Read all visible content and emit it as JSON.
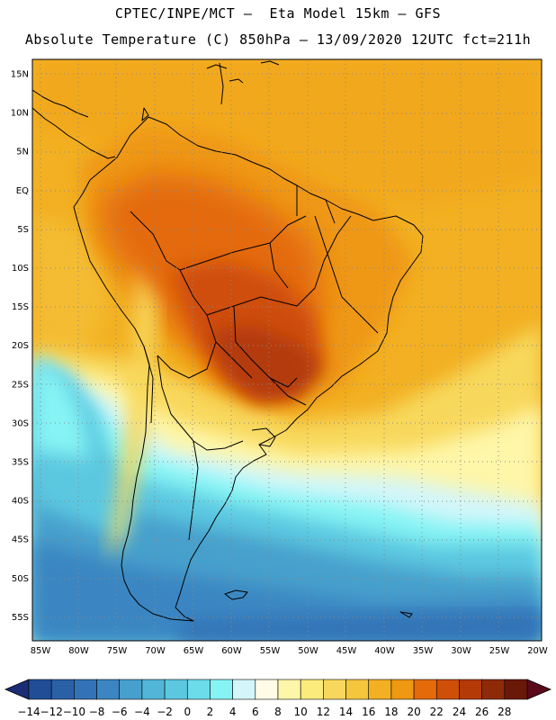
{
  "header": {
    "line1": "CPTEC/INPE/MCT –  Eta Model 15km – GFS",
    "line2": "Absolute Temperature (C) 850hPa – 13/09/2020 12UTC fct=211h"
  },
  "map": {
    "lat_labels": [
      "15N",
      "10N",
      "5N",
      "EQ",
      "5S",
      "10S",
      "15S",
      "20S",
      "25S",
      "30S",
      "35S",
      "40S",
      "45S",
      "50S",
      "55S"
    ],
    "lon_labels": [
      "85W",
      "80W",
      "75W",
      "70W",
      "65W",
      "60W",
      "55W",
      "50W",
      "45W",
      "40W",
      "35W",
      "30W",
      "25W",
      "20W"
    ]
  },
  "colorbar": {
    "labels": [
      "-14",
      "-12",
      "-10",
      "-8",
      "-6",
      "-4",
      "-2",
      "0",
      "2",
      "4",
      "6",
      "8",
      "10",
      "12",
      "14",
      "16",
      "18",
      "20",
      "22",
      "24",
      "26",
      "28"
    ],
    "colors": [
      "#1f4e96",
      "#2a60a6",
      "#3372b6",
      "#3b86c2",
      "#47a0cc",
      "#52b6d8",
      "#5cc8e0",
      "#6cdcea",
      "#86f4f4",
      "#d4f6fa",
      "#fffbe6",
      "#fef6a8",
      "#fbea7c",
      "#f8d85c",
      "#f4c63c",
      "#f2b022",
      "#ef9812",
      "#e46a0a",
      "#cf4e08",
      "#b43a08",
      "#8e2a08",
      "#6a1808"
    ]
  }
}
